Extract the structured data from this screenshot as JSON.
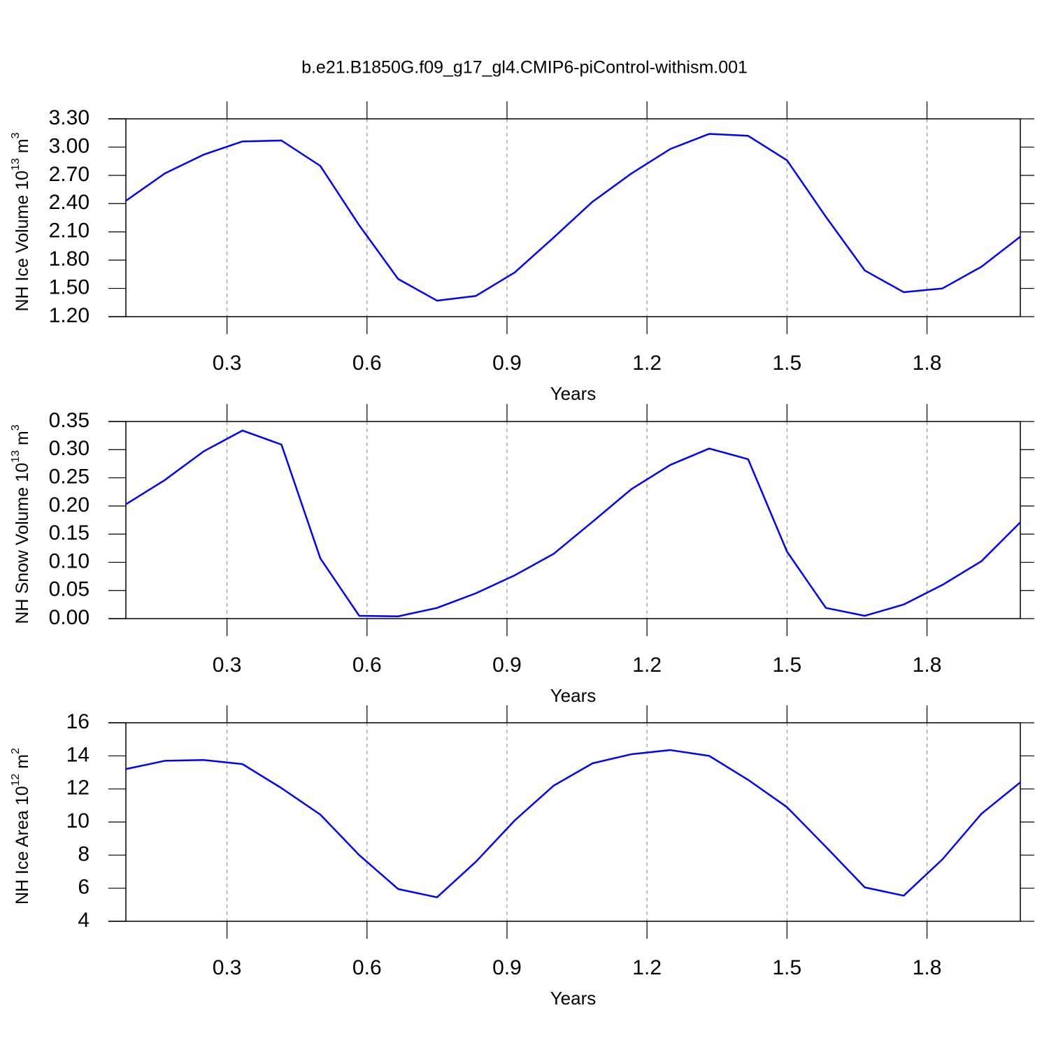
{
  "title": "b.e21.B1850G.f09_g17_gl4.CMIP6-piControl-withism.001",
  "chart_data": [
    {
      "type": "line",
      "xlabel": "Years",
      "ylabel": "NH Ice Volume 10",
      "ylabel_exp": "13",
      "ylabel_unit": "m",
      "ylabel_unit_exp": "3",
      "x": [
        0.0833,
        0.1667,
        0.25,
        0.3333,
        0.4167,
        0.5,
        0.5833,
        0.6667,
        0.75,
        0.8333,
        0.9167,
        1.0,
        1.0833,
        1.1667,
        1.25,
        1.3333,
        1.4167,
        1.5,
        1.5833,
        1.6667,
        1.75,
        1.8333,
        1.9167,
        2.0
      ],
      "values": [
        2.43,
        2.72,
        2.92,
        3.06,
        3.07,
        2.8,
        2.17,
        1.6,
        1.37,
        1.42,
        1.67,
        2.04,
        2.42,
        2.72,
        2.98,
        3.14,
        3.12,
        2.86,
        2.26,
        1.69,
        1.46,
        1.5,
        1.73,
        2.05
      ],
      "color": "#0000ff",
      "xlim": [
        0.0833,
        2.0
      ],
      "xticks": [
        0.3,
        0.6,
        0.9,
        1.2,
        1.5,
        1.8
      ],
      "ylim": [
        1.2,
        3.3
      ],
      "yticks": [
        {
          "value": 1.2,
          "label": "1.20"
        },
        {
          "value": 1.5,
          "label": "1.50"
        },
        {
          "value": 1.8,
          "label": "1.80"
        },
        {
          "value": 2.1,
          "label": "2.10"
        },
        {
          "value": 2.4,
          "label": "2.40"
        },
        {
          "value": 2.7,
          "label": "2.70"
        },
        {
          "value": 3.0,
          "label": "3.00"
        },
        {
          "value": 3.3,
          "label": "3.30"
        }
      ],
      "grid": true
    },
    {
      "type": "line",
      "xlabel": "Years",
      "ylabel": "NH Snow Volume 10",
      "ylabel_exp": "13",
      "ylabel_unit": "m",
      "ylabel_unit_exp": "3",
      "x": [
        0.0833,
        0.1667,
        0.25,
        0.3333,
        0.4167,
        0.5,
        0.5833,
        0.6667,
        0.75,
        0.8333,
        0.9167,
        1.0,
        1.0833,
        1.1667,
        1.25,
        1.3333,
        1.4167,
        1.5,
        1.5833,
        1.6667,
        1.75,
        1.8333,
        1.9167,
        2.0
      ],
      "values": [
        0.203,
        0.246,
        0.297,
        0.334,
        0.309,
        0.107,
        0.005,
        0.004,
        0.019,
        0.045,
        0.077,
        0.115,
        0.172,
        0.23,
        0.273,
        0.302,
        0.283,
        0.119,
        0.019,
        0.005,
        0.025,
        0.06,
        0.102,
        0.171
      ],
      "color": "#0000ff",
      "xlim": [
        0.0833,
        2.0
      ],
      "xticks": [
        0.3,
        0.6,
        0.9,
        1.2,
        1.5,
        1.8
      ],
      "ylim": [
        0,
        0.35
      ],
      "yticks": [
        {
          "value": 0,
          "label": "0.00"
        },
        0.05,
        {
          "value": 0.1,
          "label": "0.10"
        },
        0.15,
        {
          "value": 0.2,
          "label": "0.20"
        },
        0.25,
        {
          "value": 0.3,
          "label": "0.30"
        },
        0.35
      ],
      "grid": true
    },
    {
      "type": "line",
      "xlabel": "Years",
      "ylabel": "NH Ice Area 10",
      "ylabel_exp": "12",
      "ylabel_unit": "m",
      "ylabel_unit_exp": "2",
      "x": [
        0.0833,
        0.1667,
        0.25,
        0.3333,
        0.4167,
        0.5,
        0.5833,
        0.6667,
        0.75,
        0.8333,
        0.9167,
        1.0,
        1.0833,
        1.1667,
        1.25,
        1.3333,
        1.4167,
        1.5,
        1.5833,
        1.6667,
        1.75,
        1.8333,
        1.9167,
        2.0
      ],
      "values": [
        13.2,
        13.7,
        13.75,
        13.5,
        12.05,
        10.45,
        8.0,
        5.95,
        5.45,
        7.6,
        10.1,
        12.2,
        13.55,
        14.1,
        14.35,
        14.0,
        12.55,
        10.9,
        8.5,
        6.05,
        5.55,
        7.75,
        10.5,
        12.4
      ],
      "color": "#0000ff",
      "xlim": [
        0.0833,
        2.0
      ],
      "xticks": [
        0.3,
        0.6,
        0.9,
        1.2,
        1.5,
        1.8
      ],
      "ylim": [
        4,
        16
      ],
      "yticks": [
        4,
        6,
        8,
        10,
        12,
        14,
        16
      ],
      "grid": true
    }
  ]
}
